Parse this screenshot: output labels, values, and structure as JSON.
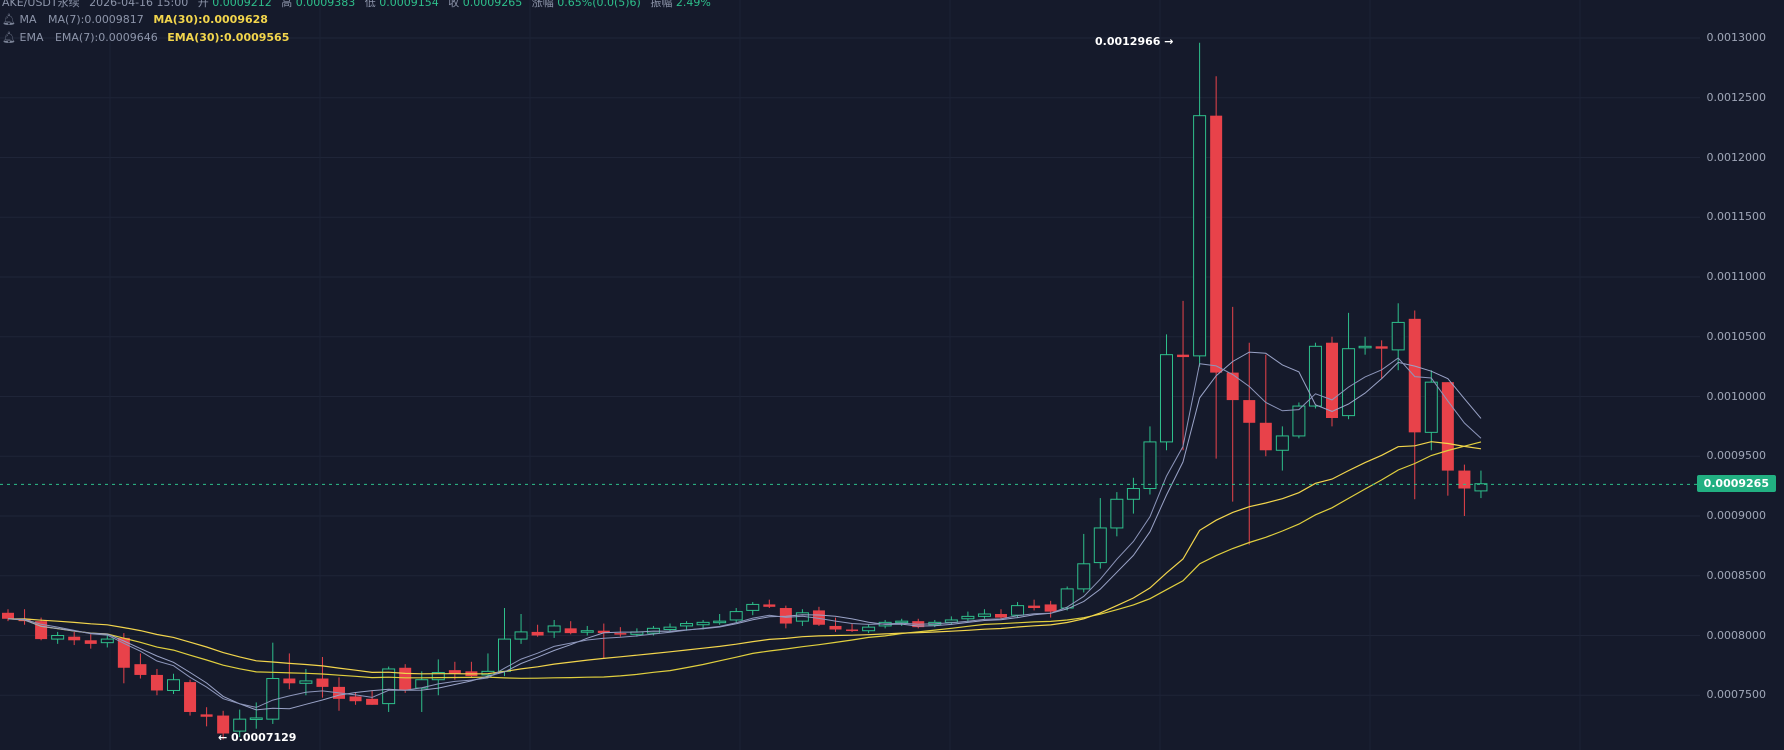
{
  "legend": {
    "ohlc": {
      "symbol": "AKE/USDT永续",
      "time": "2026-04-16 15:00",
      "open_label": "开",
      "open": "0.0009212",
      "high_label": "高",
      "high": "0.0009383",
      "low_label": "低",
      "low": "0.0009154",
      "close_label": "收",
      "close": "0.0009265",
      "change_label": "涨幅",
      "change": "0.65%(0.0(5)6)",
      "amplitude_label": "振幅",
      "amplitude": "2.49%"
    },
    "ma": {
      "name": "MA",
      "ma7": "MA(7):0.0009817",
      "ma30": "MA(30):0.0009628"
    },
    "ema": {
      "name": "EMA",
      "ema7": "EMA(7):0.0009646",
      "ema30": "EMA(30):0.0009565"
    }
  },
  "price_axis": {
    "labels": [
      "0.0013000",
      "0.0012500",
      "0.0012000",
      "0.0011500",
      "0.0011000",
      "0.0010500",
      "0.0010000",
      "0.0009500",
      "0.0009000",
      "0.0008500",
      "0.0008000",
      "0.0007500"
    ],
    "current_price": "0.0009265"
  },
  "annotations": {
    "high": "0.0012966 →",
    "low": "← 0.0007129"
  },
  "colors": {
    "background": "#151a2b",
    "up": "#2ebf8b",
    "down": "#e8424a",
    "ma7": "#9aa3c7",
    "ma30": "#8d96bb",
    "ema7": "#f2d54c",
    "ema30": "#e0cf3e",
    "price_badge": "#22b082"
  },
  "chart_data": {
    "type": "candlestick",
    "y_scale": {
      "min": 0.00071,
      "max": 0.00131
    },
    "candles": [
      {
        "o": 0.000819,
        "h": 0.000822,
        "l": 0.000812,
        "c": 0.000814
      },
      {
        "o": 0.000814,
        "h": 0.000822,
        "l": 0.000809,
        "c": 0.000812
      },
      {
        "o": 0.000812,
        "h": 0.000815,
        "l": 0.000796,
        "c": 0.000797
      },
      {
        "o": 0.000797,
        "h": 0.000803,
        "l": 0.000793,
        "c": 0.0008
      },
      {
        "o": 0.000799,
        "h": 0.000803,
        "l": 0.000792,
        "c": 0.000796
      },
      {
        "o": 0.000796,
        "h": 0.000801,
        "l": 0.000789,
        "c": 0.000793
      },
      {
        "o": 0.000794,
        "h": 0.000801,
        "l": 0.00079,
        "c": 0.000797
      },
      {
        "o": 0.000798,
        "h": 0.000802,
        "l": 0.00076,
        "c": 0.000773
      },
      {
        "o": 0.000776,
        "h": 0.000785,
        "l": 0.000764,
        "c": 0.000767
      },
      {
        "o": 0.000767,
        "h": 0.000772,
        "l": 0.00075,
        "c": 0.000754
      },
      {
        "o": 0.000754,
        "h": 0.000768,
        "l": 0.000751,
        "c": 0.000763
      },
      {
        "o": 0.000761,
        "h": 0.000763,
        "l": 0.000733,
        "c": 0.000736
      },
      {
        "o": 0.000734,
        "h": 0.00074,
        "l": 0.000724,
        "c": 0.000732
      },
      {
        "o": 0.000733,
        "h": 0.000737,
        "l": 0.000713,
        "c": 0.000718
      },
      {
        "o": 0.00072,
        "h": 0.000738,
        "l": 0.000715,
        "c": 0.00073
      },
      {
        "o": 0.000731,
        "h": 0.000744,
        "l": 0.000722,
        "c": 0.000731
      },
      {
        "o": 0.00073,
        "h": 0.000794,
        "l": 0.000726,
        "c": 0.000764
      },
      {
        "o": 0.000764,
        "h": 0.000785,
        "l": 0.000755,
        "c": 0.00076
      },
      {
        "o": 0.00076,
        "h": 0.000772,
        "l": 0.00075,
        "c": 0.000762
      },
      {
        "o": 0.000764,
        "h": 0.000782,
        "l": 0.000748,
        "c": 0.000757
      },
      {
        "o": 0.000757,
        "h": 0.000765,
        "l": 0.000737,
        "c": 0.000747
      },
      {
        "o": 0.000749,
        "h": 0.000752,
        "l": 0.000742,
        "c": 0.000745
      },
      {
        "o": 0.000747,
        "h": 0.000754,
        "l": 0.000742,
        "c": 0.000742
      },
      {
        "o": 0.000743,
        "h": 0.000774,
        "l": 0.000736,
        "c": 0.000772
      },
      {
        "o": 0.000773,
        "h": 0.000776,
        "l": 0.000752,
        "c": 0.000754
      },
      {
        "o": 0.000756,
        "h": 0.00077,
        "l": 0.000736,
        "c": 0.000763
      },
      {
        "o": 0.000763,
        "h": 0.00078,
        "l": 0.00075,
        "c": 0.000769
      },
      {
        "o": 0.000771,
        "h": 0.000778,
        "l": 0.000763,
        "c": 0.000768
      },
      {
        "o": 0.00077,
        "h": 0.000778,
        "l": 0.000765,
        "c": 0.000766
      },
      {
        "o": 0.000767,
        "h": 0.000785,
        "l": 0.000765,
        "c": 0.00077
      },
      {
        "o": 0.00077,
        "h": 0.000823,
        "l": 0.000766,
        "c": 0.000797
      },
      {
        "o": 0.000797,
        "h": 0.000818,
        "l": 0.000793,
        "c": 0.000803
      },
      {
        "o": 0.000803,
        "h": 0.000809,
        "l": 0.000799,
        "c": 0.0008
      },
      {
        "o": 0.000803,
        "h": 0.000813,
        "l": 0.000798,
        "c": 0.000808
      },
      {
        "o": 0.000806,
        "h": 0.000812,
        "l": 0.000801,
        "c": 0.000802
      },
      {
        "o": 0.000803,
        "h": 0.000808,
        "l": 0.0008,
        "c": 0.000804
      },
      {
        "o": 0.000804,
        "h": 0.00081,
        "l": 0.000781,
        "c": 0.000802
      },
      {
        "o": 0.000802,
        "h": 0.000807,
        "l": 0.000799,
        "c": 0.000801
      },
      {
        "o": 0.000801,
        "h": 0.000806,
        "l": 0.000799,
        "c": 0.000803
      },
      {
        "o": 0.000802,
        "h": 0.000808,
        "l": 0.0008,
        "c": 0.000806
      },
      {
        "o": 0.000805,
        "h": 0.00081,
        "l": 0.000803,
        "c": 0.000807
      },
      {
        "o": 0.000808,
        "h": 0.000812,
        "l": 0.000804,
        "c": 0.00081
      },
      {
        "o": 0.000809,
        "h": 0.000813,
        "l": 0.000805,
        "c": 0.000811
      },
      {
        "o": 0.000811,
        "h": 0.000818,
        "l": 0.000809,
        "c": 0.000812
      },
      {
        "o": 0.000813,
        "h": 0.000823,
        "l": 0.000811,
        "c": 0.00082
      },
      {
        "o": 0.000821,
        "h": 0.000828,
        "l": 0.000817,
        "c": 0.000826
      },
      {
        "o": 0.000826,
        "h": 0.00083,
        "l": 0.000823,
        "c": 0.000824
      },
      {
        "o": 0.000823,
        "h": 0.000825,
        "l": 0.000806,
        "c": 0.00081
      },
      {
        "o": 0.000812,
        "h": 0.000822,
        "l": 0.000808,
        "c": 0.000819
      },
      {
        "o": 0.000821,
        "h": 0.000824,
        "l": 0.000808,
        "c": 0.000809
      },
      {
        "o": 0.000808,
        "h": 0.000815,
        "l": 0.000803,
        "c": 0.000805
      },
      {
        "o": 0.000805,
        "h": 0.00081,
        "l": 0.000803,
        "c": 0.000804
      },
      {
        "o": 0.000804,
        "h": 0.000809,
        "l": 0.000802,
        "c": 0.000807
      },
      {
        "o": 0.000808,
        "h": 0.000813,
        "l": 0.000806,
        "c": 0.000811
      },
      {
        "o": 0.000811,
        "h": 0.000814,
        "l": 0.000808,
        "c": 0.000812
      },
      {
        "o": 0.000812,
        "h": 0.000814,
        "l": 0.000806,
        "c": 0.000807
      },
      {
        "o": 0.000809,
        "h": 0.000813,
        "l": 0.000807,
        "c": 0.000811
      },
      {
        "o": 0.000811,
        "h": 0.000816,
        "l": 0.000809,
        "c": 0.000813
      },
      {
        "o": 0.000814,
        "h": 0.00082,
        "l": 0.000811,
        "c": 0.000816
      },
      {
        "o": 0.000816,
        "h": 0.000822,
        "l": 0.000814,
        "c": 0.000818
      },
      {
        "o": 0.000818,
        "h": 0.000822,
        "l": 0.000814,
        "c": 0.000815
      },
      {
        "o": 0.000817,
        "h": 0.000828,
        "l": 0.000815,
        "c": 0.000825
      },
      {
        "o": 0.000825,
        "h": 0.00083,
        "l": 0.000821,
        "c": 0.000823
      },
      {
        "o": 0.000826,
        "h": 0.000829,
        "l": 0.000815,
        "c": 0.00082
      },
      {
        "o": 0.000823,
        "h": 0.000841,
        "l": 0.000821,
        "c": 0.000839
      },
      {
        "o": 0.000839,
        "h": 0.000885,
        "l": 0.000836,
        "c": 0.00086
      },
      {
        "o": 0.000861,
        "h": 0.000915,
        "l": 0.000856,
        "c": 0.00089
      },
      {
        "o": 0.00089,
        "h": 0.00092,
        "l": 0.000883,
        "c": 0.000914
      },
      {
        "o": 0.000914,
        "h": 0.000932,
        "l": 0.000902,
        "c": 0.000923
      },
      {
        "o": 0.000923,
        "h": 0.000975,
        "l": 0.000918,
        "c": 0.000962
      },
      {
        "o": 0.000962,
        "h": 0.001052,
        "l": 0.000955,
        "c": 0.001035
      },
      {
        "o": 0.001035,
        "h": 0.00108,
        "l": 0.000955,
        "c": 0.001033
      },
      {
        "o": 0.001034,
        "h": 0.001296,
        "l": 0.001025,
        "c": 0.001235
      },
      {
        "o": 0.001235,
        "h": 0.001268,
        "l": 0.000948,
        "c": 0.00102
      },
      {
        "o": 0.00102,
        "h": 0.001075,
        "l": 0.000912,
        "c": 0.000997
      },
      {
        "o": 0.000997,
        "h": 0.001045,
        "l": 0.000876,
        "c": 0.000978
      },
      {
        "o": 0.000978,
        "h": 0.001035,
        "l": 0.00095,
        "c": 0.000955
      },
      {
        "o": 0.000955,
        "h": 0.000975,
        "l": 0.000938,
        "c": 0.000967
      },
      {
        "o": 0.000967,
        "h": 0.000995,
        "l": 0.000965,
        "c": 0.000992
      },
      {
        "o": 0.000992,
        "h": 0.001045,
        "l": 0.00099,
        "c": 0.001042
      },
      {
        "o": 0.001045,
        "h": 0.00105,
        "l": 0.000975,
        "c": 0.000982
      },
      {
        "o": 0.000984,
        "h": 0.00107,
        "l": 0.000981,
        "c": 0.00104
      },
      {
        "o": 0.001042,
        "h": 0.00105,
        "l": 0.001035,
        "c": 0.001042
      },
      {
        "o": 0.001042,
        "h": 0.001047,
        "l": 0.001015,
        "c": 0.00104
      },
      {
        "o": 0.001039,
        "h": 0.001078,
        "l": 0.001022,
        "c": 0.001062
      },
      {
        "o": 0.001065,
        "h": 0.001072,
        "l": 0.000914,
        "c": 0.00097
      },
      {
        "o": 0.00097,
        "h": 0.001022,
        "l": 0.000955,
        "c": 0.001012
      },
      {
        "o": 0.001012,
        "h": 0.001012,
        "l": 0.000917,
        "c": 0.000938
      },
      {
        "o": 0.000938,
        "h": 0.000943,
        "l": 0.0009,
        "c": 0.000923
      },
      {
        "o": 0.000921,
        "h": 0.000938,
        "l": 0.000915,
        "c": 0.000927
      }
    ]
  }
}
